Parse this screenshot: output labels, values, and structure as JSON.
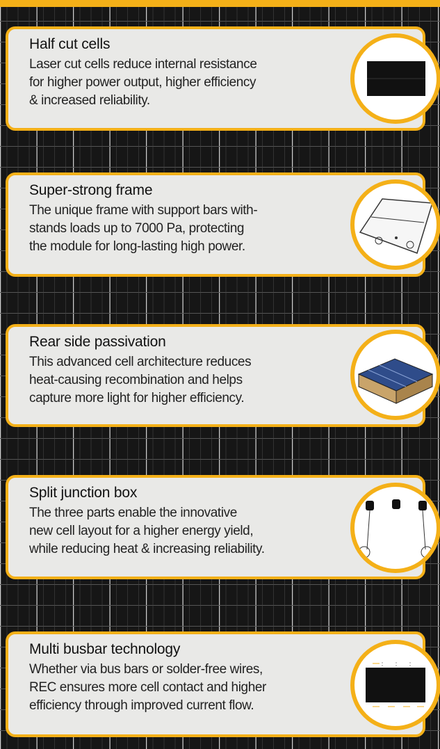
{
  "features": [
    {
      "title": "Half cut cells",
      "lines": [
        "Laser cut cells reduce internal resistance",
        "for higher power output, higher efficiency",
        "& increased reliability."
      ]
    },
    {
      "title": "Super-strong frame",
      "lines": [
        "The unique frame with support bars with-",
        "stands loads up to 7000 Pa, protecting",
        "the module for long-lasting high power."
      ]
    },
    {
      "title": "Rear side passivation",
      "lines": [
        "This advanced cell architecture reduces",
        "heat-causing recombination and helps",
        "capture more light for higher efficiency."
      ]
    },
    {
      "title": "Split junction box",
      "lines": [
        "The three parts enable the innovative",
        "new cell layout for a higher energy yield,",
        "while reducing heat & increasing reliability."
      ]
    },
    {
      "title": "Multi busbar technology",
      "lines": [
        "Whether via bus bars or solder-free wires,",
        "REC ensures more cell contact and higher",
        "efficiency through improved current flow."
      ]
    }
  ]
}
